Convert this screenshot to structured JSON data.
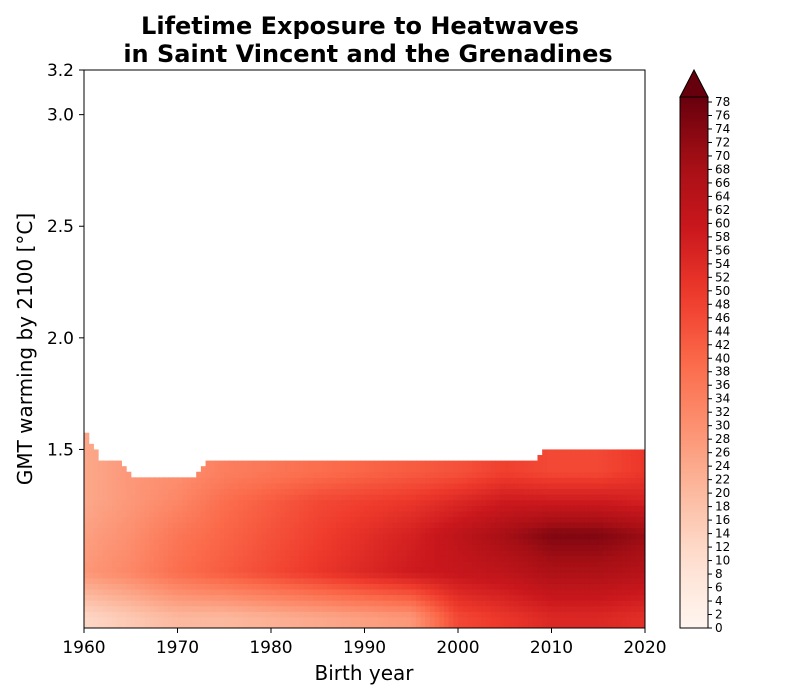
{
  "chart_data": {
    "type": "heatmap",
    "title_lines": [
      "Lifetime Exposure to Heatwaves",
      "in Saint Vincent and the Grenadines"
    ],
    "xlabel": "Birth year",
    "ylabel": "GMT warming by 2100 [°C]",
    "xlim": [
      1960,
      2020
    ],
    "ylim": [
      0.7,
      3.2
    ],
    "x_ticks": [
      1960,
      1970,
      1980,
      1990,
      2000,
      2010,
      2020
    ],
    "y_ticks": [
      "1.5",
      "2.0",
      "2.5",
      "3.0",
      "3.2"
    ],
    "colormap": "Reds",
    "colorbar": {
      "min": 0,
      "max": 78,
      "step": 2,
      "extend": "max",
      "ticks": [
        "0",
        "2",
        "4",
        "6",
        "8",
        "10",
        "12",
        "14",
        "16",
        "18",
        "20",
        "22",
        "24",
        "26",
        "28",
        "30",
        "32",
        "34",
        "36",
        "38",
        "40",
        "42",
        "44",
        "46",
        "48",
        "50",
        "52",
        "54",
        "56",
        "58",
        "60",
        "62",
        "64",
        "66",
        "68",
        "70",
        "72",
        "74",
        "76",
        "78"
      ]
    },
    "boundary": [
      {
        "year": 1960,
        "gmt": 1.59
      },
      {
        "year": 1962,
        "gmt": 1.44
      },
      {
        "year": 1964,
        "gmt": 1.44
      },
      {
        "year": 1965,
        "gmt": 1.37
      },
      {
        "year": 1972,
        "gmt": 1.37
      },
      {
        "year": 1973,
        "gmt": 1.44
      },
      {
        "year": 2008,
        "gmt": 1.44
      },
      {
        "year": 2009,
        "gmt": 1.5
      },
      {
        "year": 2020,
        "gmt": 1.5
      }
    ],
    "gmt_levels": [
      0.75,
      0.95,
      1.12,
      1.27,
      1.4
    ],
    "years": [
      1960,
      1965,
      1970,
      1975,
      1980,
      1985,
      1990,
      1995,
      2000,
      2005,
      2010,
      2015,
      2020
    ],
    "values": [
      [
        12,
        16,
        20,
        20,
        22,
        24,
        26,
        28,
        46,
        50,
        54,
        54,
        52
      ],
      [
        28,
        32,
        38,
        42,
        46,
        50,
        54,
        58,
        60,
        62,
        66,
        66,
        64
      ],
      [
        26,
        30,
        36,
        40,
        44,
        48,
        52,
        56,
        62,
        68,
        74,
        74,
        70
      ],
      [
        24,
        28,
        32,
        38,
        42,
        46,
        48,
        50,
        54,
        58,
        58,
        58,
        56
      ],
      [
        24,
        28,
        30,
        34,
        36,
        38,
        40,
        42,
        44,
        48,
        46,
        46,
        50
      ]
    ]
  }
}
